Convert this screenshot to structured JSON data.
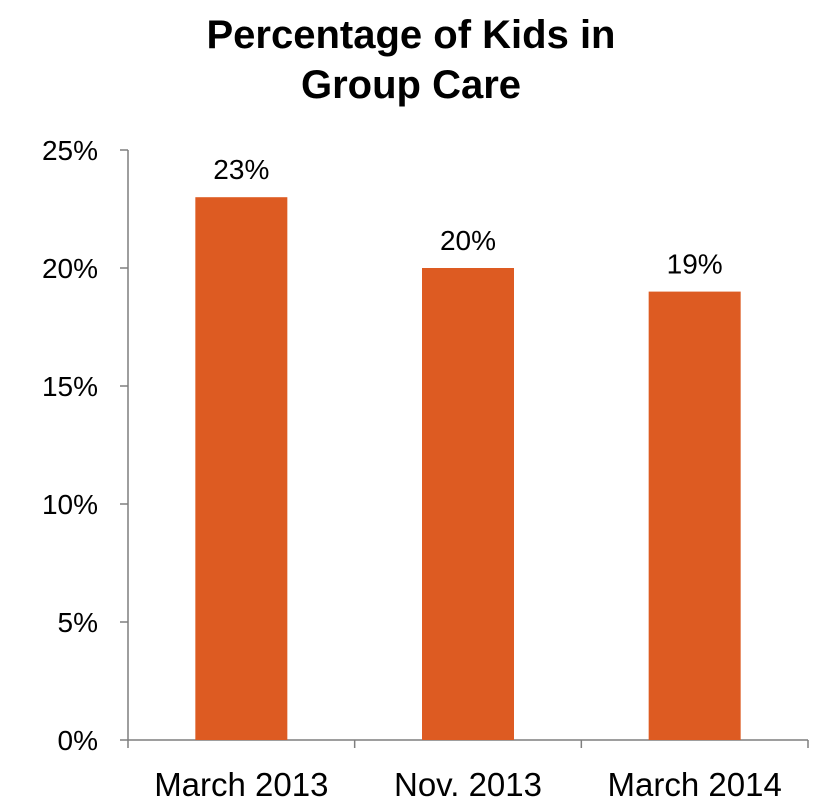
{
  "chart_data": {
    "type": "bar",
    "title_lines": [
      "Percentage of Kids in",
      "Group Care"
    ],
    "categories": [
      "March 2013",
      "Nov. 2013",
      "March 2014"
    ],
    "values": [
      23,
      20,
      19
    ],
    "data_labels": [
      "23%",
      "20%",
      "19%"
    ],
    "y_ticks": [
      0,
      5,
      10,
      15,
      20,
      25
    ],
    "y_tick_labels": [
      "0%",
      "5%",
      "10%",
      "15%",
      "20%",
      "25%"
    ],
    "ylim": [
      0,
      25
    ],
    "xlabel": "",
    "ylabel": "",
    "grid": false,
    "legend": false,
    "bar_color": "#DD5B22",
    "axis_color": "#7F7F7F"
  }
}
